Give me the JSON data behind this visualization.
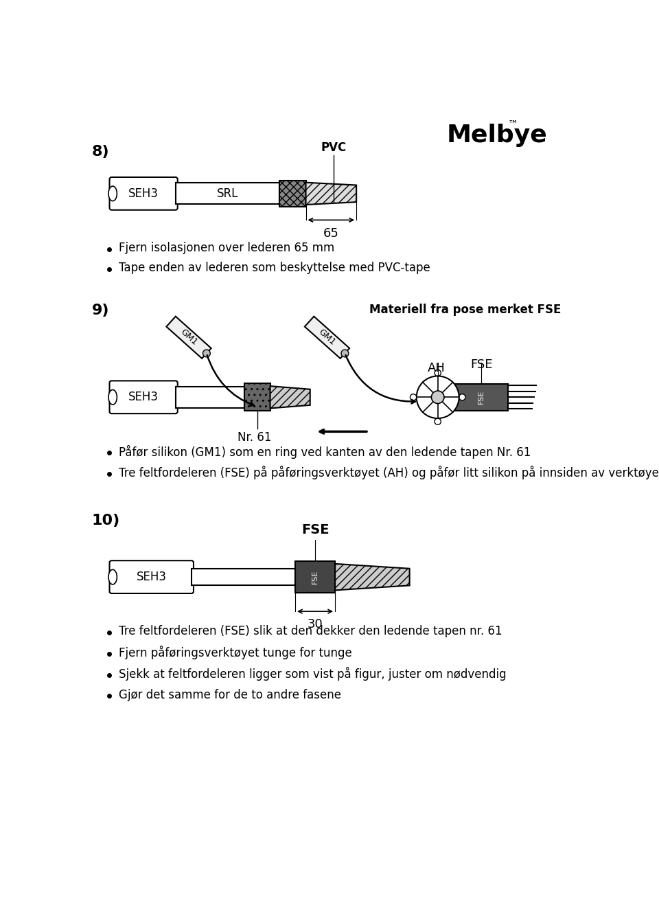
{
  "bg_color": "#ffffff",
  "black": "#000000",
  "white": "#ffffff",
  "logo_text": "Melbye",
  "section8_label": "8)",
  "section9_label": "9)",
  "section10_label": "10)",
  "section9_right_label": "Materiell fra pose merket FSE",
  "bullet8": [
    "Fjern isolasjonen over lederen 65 mm",
    "Tape enden av lederen som beskyttelse med PVC-tape"
  ],
  "bullet9": [
    "Påfør silikon (GM1) som en ring ved kanten av den ledende tapen Nr. 61",
    "Tre feltfordeleren (FSE) på påføringsverktøyet (AH) og påfør litt silikon på innsiden av verktøyet"
  ],
  "bullet10": [
    "Tre feltfordeleren (FSE) slik at den dekker den ledende tapen nr. 61",
    "Fjern påføringsverktøyet tunge for tunge",
    "Sjekk at feltfordeleren ligger som vist på figur, juster om nødvendig",
    "Gjør det samme for de to andre fasene"
  ]
}
